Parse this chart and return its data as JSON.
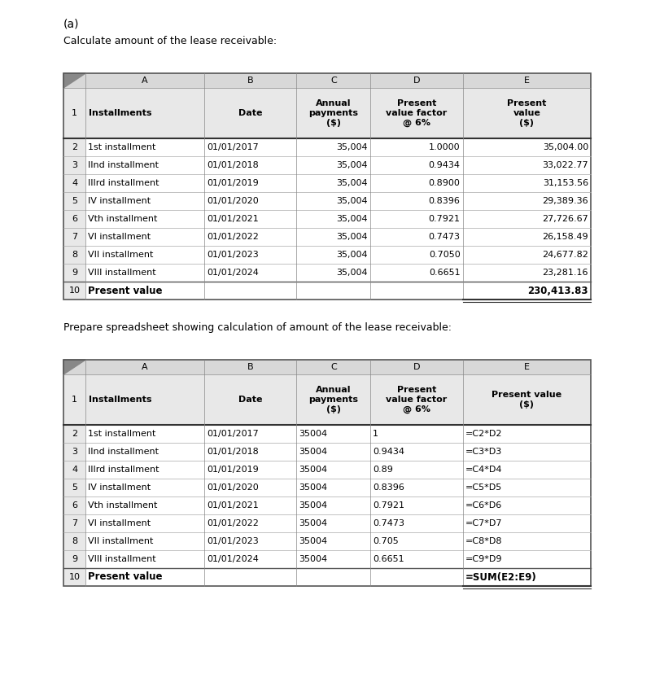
{
  "title_a": "(a)",
  "subtitle1": "Calculate amount of the lease receivable:",
  "subtitle2": "Prepare spreadsheet showing calculation of amount of the lease receivable:",
  "table1": {
    "col_headers": [
      "A",
      "B",
      "C",
      "D",
      "E"
    ],
    "header_row": [
      "Installments",
      "Date",
      "Annual\npayments\n($)",
      "Present\nvalue factor\n@ 6%",
      "Present\nvalue\n($)"
    ],
    "rows": [
      [
        "1st installment",
        "01/01/2017",
        "35,004",
        "1.0000",
        "35,004.00"
      ],
      [
        "IInd installment",
        "01/01/2018",
        "35,004",
        "0.9434",
        "33,022.77"
      ],
      [
        "IIIrd installment",
        "01/01/2019",
        "35,004",
        "0.8900",
        "31,153.56"
      ],
      [
        "IV installment",
        "01/01/2020",
        "35,004",
        "0.8396",
        "29,389.36"
      ],
      [
        "Vth installment",
        "01/01/2021",
        "35,004",
        "0.7921",
        "27,726.67"
      ],
      [
        "VI installment",
        "01/01/2022",
        "35,004",
        "0.7473",
        "26,158.49"
      ],
      [
        "VII installment",
        "01/01/2023",
        "35,004",
        "0.7050",
        "24,677.82"
      ],
      [
        "VIII installment",
        "01/01/2024",
        "35,004",
        "0.6651",
        "23,281.16"
      ]
    ],
    "footer": [
      "Present value",
      "",
      "",
      "",
      "230,413.83"
    ],
    "col_aligns": [
      "left",
      "left",
      "right",
      "right",
      "right"
    ]
  },
  "table2": {
    "col_headers": [
      "A",
      "B",
      "C",
      "D",
      "E"
    ],
    "header_row": [
      "Installments",
      "Date",
      "Annual\npayments\n($)",
      "Present\nvalue factor\n@ 6%",
      "Present value\n($)"
    ],
    "rows": [
      [
        "1st installment",
        "01/01/2017",
        "35004",
        "1",
        "=C2*D2"
      ],
      [
        "IInd installment",
        "01/01/2018",
        "35004",
        "0.9434",
        "=C3*D3"
      ],
      [
        "IIIrd installment",
        "01/01/2019",
        "35004",
        "0.89",
        "=C4*D4"
      ],
      [
        "IV installment",
        "01/01/2020",
        "35004",
        "0.8396",
        "=C5*D5"
      ],
      [
        "Vth installment",
        "01/01/2021",
        "35004",
        "0.7921",
        "=C6*D6"
      ],
      [
        "VI installment",
        "01/01/2022",
        "35004",
        "0.7473",
        "=C7*D7"
      ],
      [
        "VII installment",
        "01/01/2023",
        "35004",
        "0.705",
        "=C8*D8"
      ],
      [
        "VIII installment",
        "01/01/2024",
        "35004",
        "0.6651",
        "=C9*D9"
      ]
    ],
    "footer": [
      "Present value",
      "",
      "",
      "",
      "=SUM(E2:E9)"
    ],
    "col_aligns": [
      "left",
      "left",
      "left",
      "left",
      "left"
    ]
  },
  "text_color": "#000000"
}
